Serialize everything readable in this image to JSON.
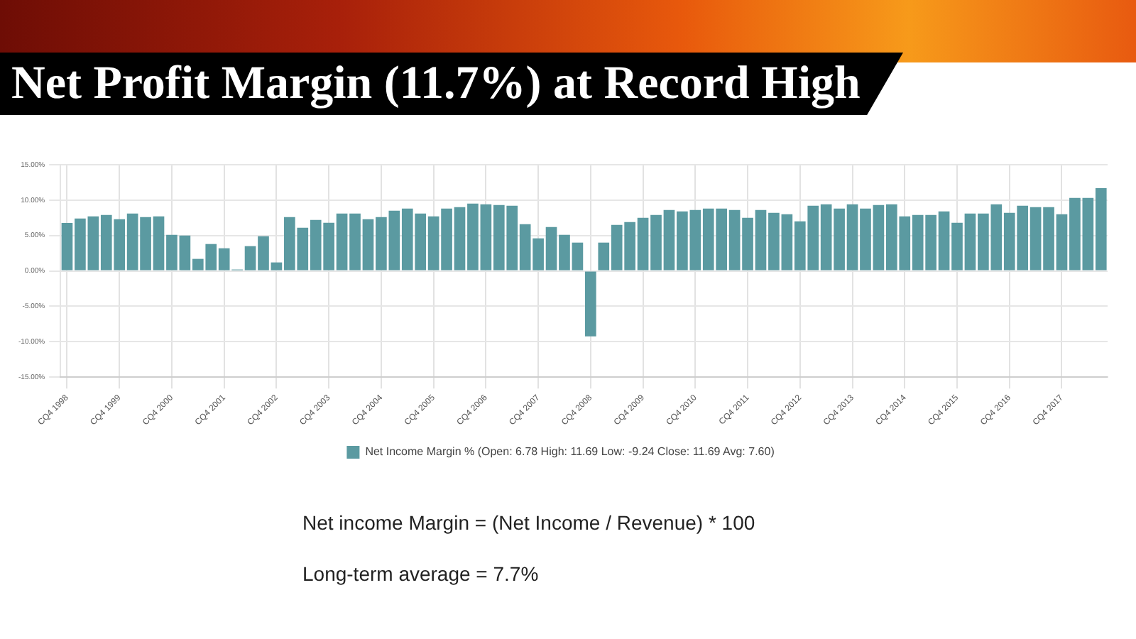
{
  "chart_data": {
    "type": "bar",
    "title": "Net Profit Margin (11.7%) at Record High",
    "categories": [
      "CQ4 1998",
      null,
      null,
      null,
      "CQ4 1999",
      null,
      null,
      null,
      "CQ4 2000",
      null,
      null,
      null,
      "CQ4 2001",
      null,
      null,
      null,
      "CQ4 2002",
      null,
      null,
      null,
      "CQ4 2003",
      null,
      null,
      null,
      "CQ4 2004",
      null,
      null,
      null,
      "CQ4 2005",
      null,
      null,
      null,
      "CQ4 2006",
      null,
      null,
      null,
      "CQ4 2007",
      null,
      null,
      null,
      "CQ4 2008",
      null,
      null,
      null,
      "CQ4 2009",
      null,
      null,
      null,
      "CQ4 2010",
      null,
      null,
      null,
      "CQ4 2011",
      null,
      null,
      null,
      "CQ4 2012",
      null,
      null,
      null,
      "CQ4 2013",
      null,
      null,
      null,
      "CQ4 2014",
      null,
      null,
      null,
      "CQ4 2015",
      null,
      null,
      null,
      "CQ4 2016",
      null,
      null,
      null,
      "CQ4 2017",
      null,
      null,
      null
    ],
    "series": [
      {
        "name": "Net Income Margin % (Open: 6.78 High: 11.69 Low: -9.24 Close: 11.69 Avg: 7.60)",
        "color": "#5b9aa1",
        "values": [
          6.78,
          7.4,
          7.7,
          7.9,
          7.3,
          8.1,
          7.6,
          7.7,
          5.1,
          5.0,
          1.7,
          3.8,
          3.2,
          0.2,
          3.5,
          4.9,
          1.2,
          7.6,
          6.1,
          7.2,
          6.8,
          8.1,
          8.1,
          7.3,
          7.6,
          8.5,
          8.8,
          8.1,
          7.7,
          8.8,
          9.0,
          9.5,
          9.4,
          9.3,
          9.2,
          6.6,
          4.6,
          6.2,
          5.1,
          4.0,
          -9.24,
          4.0,
          6.5,
          6.9,
          7.5,
          7.9,
          8.6,
          8.4,
          8.6,
          8.8,
          8.8,
          8.6,
          7.5,
          8.6,
          8.2,
          8.0,
          7.0,
          9.2,
          9.4,
          8.8,
          9.4,
          8.8,
          9.3,
          9.4,
          7.7,
          7.9,
          7.9,
          8.4,
          6.8,
          8.1,
          8.1,
          9.4,
          8.2,
          9.2,
          9.0,
          9.0,
          8.0,
          10.3,
          10.3,
          11.69
        ]
      }
    ],
    "ylim": [
      -15,
      15
    ],
    "yticks": [
      {
        "value": -15,
        "label": "-15.00%"
      },
      {
        "value": -10,
        "label": "-10.00%"
      },
      {
        "value": -5,
        "label": "-5.00%"
      },
      {
        "value": 0,
        "label": "0.00%"
      },
      {
        "value": 5,
        "label": "5.00%"
      },
      {
        "value": 10,
        "label": "10.00%"
      },
      {
        "value": 15,
        "label": "15.00%"
      }
    ],
    "grid": true,
    "legend": "bottom",
    "annotations": [
      "Net income Margin = (Net Income / Revenue) * 100",
      "Long-term average = 7.7%"
    ]
  }
}
